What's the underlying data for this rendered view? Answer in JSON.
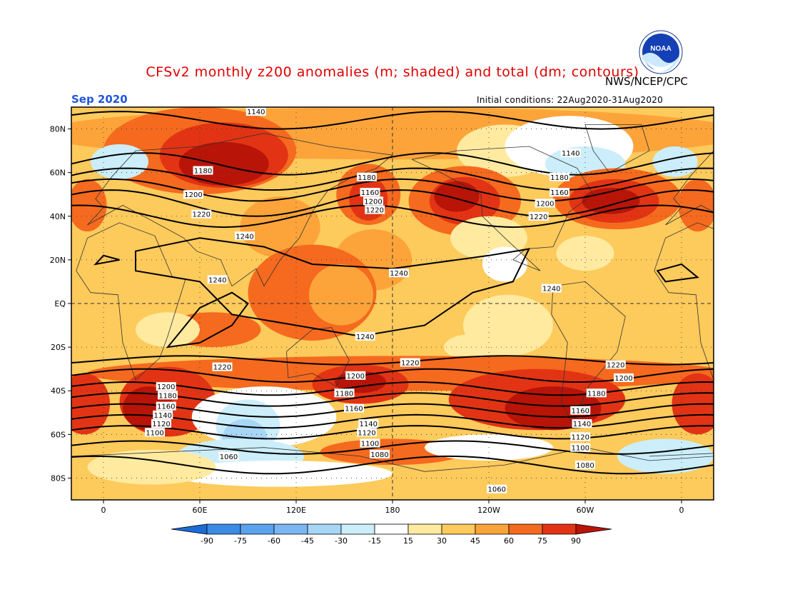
{
  "header": {
    "title": "CFSv2 monthly z200 anomalies (m; shaded) and total (dm; contours)",
    "source": "NWS/NCEP/CPC",
    "month": "Sep 2020",
    "initial_conditions": "Initial conditions: 22Aug2020-31Aug2020",
    "logo_text": "NOAA"
  },
  "map": {
    "lat_labels": [
      "80N",
      "60N",
      "40N",
      "20N",
      "EQ",
      "20S",
      "40S",
      "60S",
      "80S"
    ],
    "lat_values": [
      80,
      60,
      40,
      20,
      0,
      -20,
      -40,
      -60,
      -80
    ],
    "lon_labels": [
      "0",
      "60E",
      "120E",
      "180",
      "120W",
      "60W",
      "0"
    ],
    "lon_values": [
      0,
      60,
      120,
      180,
      240,
      300,
      360
    ],
    "lat_range": [
      -90,
      90
    ],
    "lon_range": [
      -20,
      380
    ],
    "contour_labels": [
      {
        "text": "1140",
        "lon": 95,
        "lat": 88
      },
      {
        "text": "1180",
        "lon": 62,
        "lat": 61
      },
      {
        "text": "1200",
        "lon": 56,
        "lat": 50
      },
      {
        "text": "1220",
        "lon": 61,
        "lat": 41
      },
      {
        "text": "1240",
        "lon": 88,
        "lat": 31
      },
      {
        "text": "1240",
        "lon": 71,
        "lat": 11
      },
      {
        "text": "1180",
        "lon": 164,
        "lat": 58
      },
      {
        "text": "1160",
        "lon": 166,
        "lat": 51
      },
      {
        "text": "1200",
        "lon": 168,
        "lat": 47
      },
      {
        "text": "1220",
        "lon": 169,
        "lat": 43
      },
      {
        "text": "1240",
        "lon": 184,
        "lat": 14
      },
      {
        "text": "1140",
        "lon": 291,
        "lat": 69
      },
      {
        "text": "1180",
        "lon": 284,
        "lat": 58
      },
      {
        "text": "1160",
        "lon": 284,
        "lat": 51
      },
      {
        "text": "1200",
        "lon": 275,
        "lat": 46
      },
      {
        "text": "1220",
        "lon": 271,
        "lat": 40
      },
      {
        "text": "1240",
        "lon": 279,
        "lat": 7
      },
      {
        "text": "1240",
        "lon": 163,
        "lat": -15
      },
      {
        "text": "1220",
        "lon": 74,
        "lat": -29
      },
      {
        "text": "1220",
        "lon": 191,
        "lat": -27
      },
      {
        "text": "1220",
        "lon": 319,
        "lat": -28
      },
      {
        "text": "1200",
        "lon": 157,
        "lat": -33
      },
      {
        "text": "1200",
        "lon": 324,
        "lat": -34
      },
      {
        "text": "1200",
        "lon": 39,
        "lat": -38
      },
      {
        "text": "1180",
        "lon": 40,
        "lat": -42
      },
      {
        "text": "1180",
        "lon": 150,
        "lat": -41
      },
      {
        "text": "1180",
        "lon": 307,
        "lat": -41
      },
      {
        "text": "1160",
        "lon": 39,
        "lat": -47
      },
      {
        "text": "1160",
        "lon": 156,
        "lat": -48
      },
      {
        "text": "1160",
        "lon": 297,
        "lat": -49
      },
      {
        "text": "1140",
        "lon": 37,
        "lat": -51
      },
      {
        "text": "1140",
        "lon": 165,
        "lat": -55
      },
      {
        "text": "1140",
        "lon": 298,
        "lat": -55
      },
      {
        "text": "1120",
        "lon": 36,
        "lat": -55
      },
      {
        "text": "1120",
        "lon": 164,
        "lat": -59
      },
      {
        "text": "1120",
        "lon": 297,
        "lat": -61
      },
      {
        "text": "1100",
        "lon": 32,
        "lat": -59
      },
      {
        "text": "1100",
        "lon": 166,
        "lat": -64
      },
      {
        "text": "1100",
        "lon": 297,
        "lat": -66
      },
      {
        "text": "1060",
        "lon": 78,
        "lat": -70
      },
      {
        "text": "1080",
        "lon": 172,
        "lat": -69
      },
      {
        "text": "1080",
        "lon": 300,
        "lat": -74
      },
      {
        "text": "1060",
        "lon": 245,
        "lat": -85
      }
    ]
  },
  "colorbar": {
    "labels": [
      "-90",
      "-75",
      "-60",
      "-45",
      "-30",
      "-15",
      "15",
      "30",
      "45",
      "60",
      "75",
      "90"
    ],
    "colors": [
      "#1c6cd8",
      "#3b8ae6",
      "#5aa2ee",
      "#7ab6f2",
      "#a8d6f6",
      "#cbeefa",
      "#ffffff",
      "#ffeaa0",
      "#fdca5c",
      "#fca43a",
      "#f56a1e",
      "#e23414",
      "#b81408"
    ]
  },
  "anomaly_palette": {
    "w": "#ffffff",
    "y1": "#ffeaa0",
    "y2": "#fdca5c",
    "o1": "#fca43a",
    "o2": "#f56a1e",
    "r1": "#e23414",
    "r2": "#b81408",
    "b1": "#cbeefa",
    "b2": "#a8d6f6",
    "b3": "#7ab6f2"
  }
}
